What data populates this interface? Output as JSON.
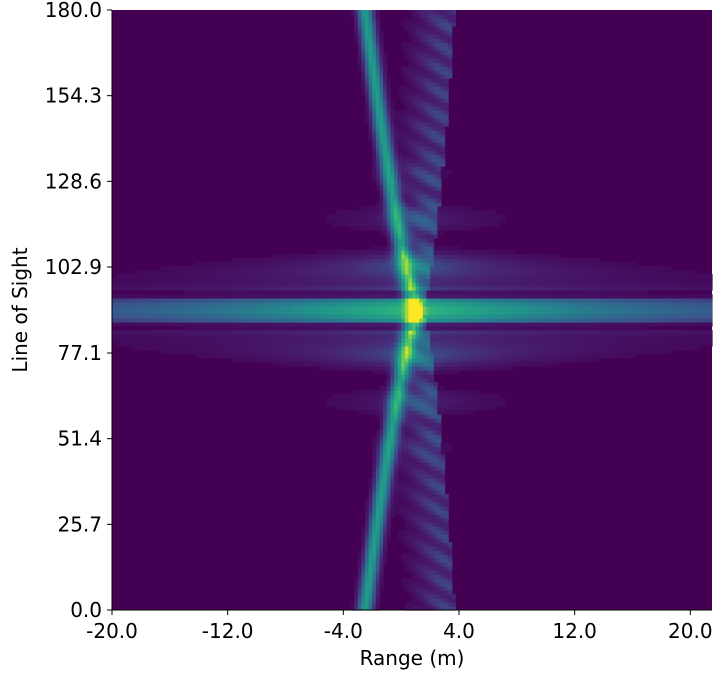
{
  "chart_data": {
    "type": "heatmap",
    "title": "",
    "xlabel": "Range (m)",
    "ylabel": "Line of Sight",
    "xlim": [
      -20.0,
      21.5
    ],
    "ylim": [
      0.0,
      180.0
    ],
    "xticks": [
      {
        "value": -20.0,
        "label": "-20.0"
      },
      {
        "value": -12.0,
        "label": "-12.0"
      },
      {
        "value": -4.0,
        "label": "-4.0"
      },
      {
        "value": 4.0,
        "label": "4.0"
      },
      {
        "value": 12.0,
        "label": "12.0"
      },
      {
        "value": 20.0,
        "label": "20.0"
      }
    ],
    "yticks": [
      {
        "value": 0.0,
        "label": "0.0"
      },
      {
        "value": 25.7,
        "label": "25.7"
      },
      {
        "value": 51.4,
        "label": "51.4"
      },
      {
        "value": 77.1,
        "label": "77.1"
      },
      {
        "value": 102.9,
        "label": "102.9"
      },
      {
        "value": 128.6,
        "label": "128.6"
      },
      {
        "value": 154.3,
        "label": "154.3"
      },
      {
        "value": 180.0,
        "label": "180.0"
      }
    ],
    "colormap": "viridis",
    "grid": false,
    "background_color": "#440154",
    "peak": {
      "range": 1.0,
      "line_of_sight": 90.0,
      "intensity": 1.0
    },
    "features": {
      "horizontal_band": {
        "line_of_sight_center": 90.0,
        "range_start": -20.0,
        "range_end": 21.5,
        "max_intensity": 0.55
      },
      "left_trace": {
        "range_at_center": 1.0,
        "range_at_ends": -2.5,
        "line_of_sight_span": [
          0.0,
          180.0
        ],
        "max_intensity": 0.55
      },
      "right_envelope": {
        "range_min": 1.0,
        "range_max": 3.3,
        "max_intensity": 0.3
      }
    }
  }
}
